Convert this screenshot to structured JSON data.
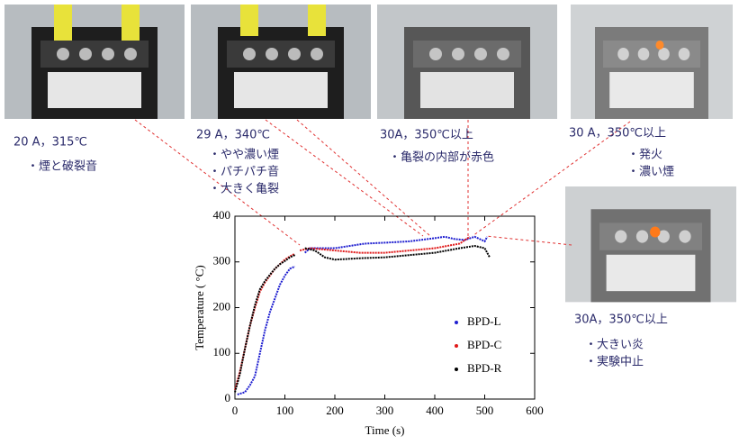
{
  "chart_data": {
    "type": "line",
    "xlabel": "Time (s)",
    "ylabel": "Temperature ( °C)",
    "xlim": [
      0,
      600
    ],
    "ylim": [
      0,
      400
    ],
    "xticks": [
      0,
      100,
      200,
      300,
      400,
      500,
      600
    ],
    "yticks": [
      0,
      100,
      200,
      300,
      400
    ],
    "legend": "lower right",
    "series": [
      {
        "name": "BPD-L",
        "color": "#1f1fd0",
        "x": [
          5,
          20,
          30,
          40,
          50,
          60,
          70,
          80,
          90,
          100,
          110,
          120,
          130,
          140,
          150,
          170,
          200,
          230,
          260,
          300,
          350,
          400,
          420,
          440,
          460,
          480,
          500,
          505
        ],
        "values": [
          10,
          15,
          30,
          50,
          100,
          150,
          190,
          220,
          250,
          270,
          285,
          290,
          null,
          320,
          330,
          330,
          330,
          335,
          340,
          342,
          345,
          352,
          355,
          350,
          348,
          355,
          345,
          355
        ]
      },
      {
        "name": "BPD-C",
        "color": "#e01818",
        "x": [
          0,
          10,
          20,
          30,
          40,
          50,
          60,
          70,
          80,
          90,
          100,
          110,
          120,
          125,
          130,
          150,
          200,
          250,
          300,
          350,
          400,
          450,
          470
        ],
        "values": [
          20,
          60,
          110,
          160,
          200,
          235,
          255,
          270,
          285,
          295,
          305,
          312,
          318,
          null,
          325,
          330,
          325,
          320,
          320,
          325,
          330,
          340,
          355
        ]
      },
      {
        "name": "BPD-R",
        "color": "#000000",
        "x": [
          0,
          10,
          20,
          30,
          40,
          50,
          60,
          70,
          80,
          90,
          100,
          110,
          120,
          130,
          140,
          160,
          180,
          200,
          250,
          300,
          350,
          400,
          450,
          480,
          500,
          510
        ],
        "values": [
          15,
          55,
          110,
          160,
          205,
          240,
          258,
          272,
          285,
          295,
          302,
          310,
          315,
          null,
          330,
          325,
          310,
          305,
          308,
          310,
          315,
          320,
          330,
          335,
          330,
          310
        ]
      }
    ],
    "annotations": [
      {
        "heading": "20 A，315℃",
        "lines": [
          "・煙と破裂音"
        ]
      },
      {
        "heading": "29 A，340℃",
        "lines": [
          "・やや濃い煙",
          "・パチパチ音",
          "・大きく亀裂"
        ]
      },
      {
        "heading": "30A，350℃以上",
        "lines": [
          "・亀裂の内部が赤色"
        ]
      },
      {
        "heading": "30 A，350℃以上",
        "lines": [
          "・発火",
          "・濃い煙"
        ]
      },
      {
        "heading": "30A，350℃以上",
        "lines": [
          "・大きい炎",
          "・実験中止"
        ]
      }
    ]
  }
}
